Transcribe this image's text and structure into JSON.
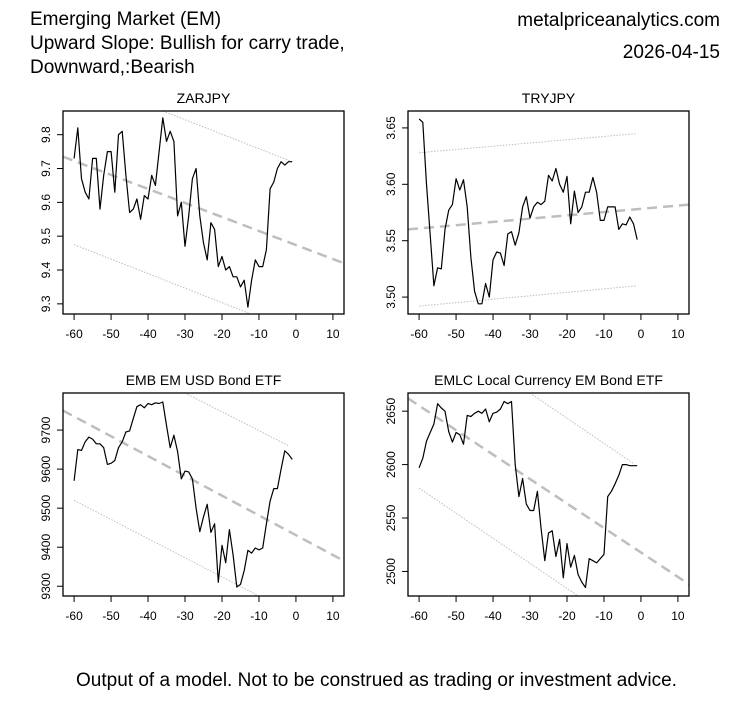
{
  "header": {
    "title_lines": [
      "Emerging Market (EM)",
      "Upward Slope: Bullish for carry trade,",
      "Downward,:Bearish"
    ],
    "site": "metalpriceanalytics.com",
    "date": "2026-04-15"
  },
  "footer": "Output of a model. Not to be construed as trading or investment advice.",
  "colors": {
    "series": "#000000",
    "trend": "#bebebe",
    "band": "#bebebe"
  },
  "chart_data": [
    {
      "type": "line",
      "title": "ZARJPY",
      "xlim": [
        -63,
        13
      ],
      "ylim": [
        9.27,
        9.87
      ],
      "xticks": [
        -60,
        -50,
        -40,
        -30,
        -20,
        -10,
        0,
        10
      ],
      "yticks": [
        9.3,
        9.4,
        9.5,
        9.6,
        9.7,
        9.8
      ],
      "ytick_labels": [
        "9.3",
        "9.4",
        "9.5",
        "9.6",
        "9.7",
        "9.8"
      ],
      "series": [
        {
          "name": "ZARJPY",
          "x": [
            -60,
            -59,
            -58,
            -57,
            -56,
            -55,
            -54,
            -53,
            -52,
            -51,
            -50,
            -49,
            -48,
            -47,
            -46,
            -45,
            -44,
            -43,
            -42,
            -41,
            -40,
            -39,
            -38,
            -37,
            -36,
            -35,
            -34,
            -33,
            -32,
            -31,
            -30,
            -29,
            -28,
            -27,
            -26,
            -25,
            -24,
            -23,
            -22,
            -21,
            -20,
            -19,
            -18,
            -17,
            -16,
            -15,
            -14,
            -13,
            -12,
            -11,
            -10,
            -9,
            -8,
            -7,
            -6,
            -5,
            -4,
            -3,
            -2,
            -1
          ],
          "y": [
            9.73,
            9.82,
            9.67,
            9.63,
            9.61,
            9.73,
            9.73,
            9.58,
            9.68,
            9.75,
            9.75,
            9.63,
            9.8,
            9.81,
            9.68,
            9.57,
            9.58,
            9.61,
            9.55,
            9.62,
            9.61,
            9.68,
            9.65,
            9.75,
            9.85,
            9.78,
            9.81,
            9.78,
            9.56,
            9.6,
            9.47,
            9.56,
            9.67,
            9.7,
            9.56,
            9.48,
            9.43,
            9.54,
            9.52,
            9.41,
            9.44,
            9.4,
            9.41,
            9.38,
            9.38,
            9.35,
            9.37,
            9.29,
            9.37,
            9.43,
            9.41,
            9.41,
            9.46,
            9.64,
            9.66,
            9.7,
            9.72,
            9.71,
            9.72,
            9.72
          ]
        }
      ],
      "trend": {
        "x": [
          -63,
          13
        ],
        "y": [
          9.735,
          9.42
        ]
      },
      "upper_band": {
        "x": [
          -36,
          -1
        ],
        "y": [
          9.87,
          9.72
        ]
      },
      "lower_band": {
        "x": [
          -60,
          -11
        ],
        "y": [
          9.475,
          9.265
        ]
      }
    },
    {
      "type": "line",
      "title": "TRYJPY",
      "xlim": [
        -63,
        13
      ],
      "ylim": [
        3.485,
        3.665
      ],
      "xticks": [
        -60,
        -50,
        -40,
        -30,
        -20,
        -10,
        0,
        10
      ],
      "yticks": [
        3.5,
        3.55,
        3.6,
        3.65
      ],
      "ytick_labels": [
        "3.50",
        "3.55",
        "3.60",
        "3.65"
      ],
      "series": [
        {
          "name": "TRYJPY",
          "x": [
            -60,
            -59,
            -58,
            -57,
            -56,
            -55,
            -54,
            -53,
            -52,
            -51,
            -50,
            -49,
            -48,
            -47,
            -46,
            -45,
            -44,
            -43,
            -42,
            -41,
            -40,
            -39,
            -38,
            -37,
            -36,
            -35,
            -34,
            -33,
            -32,
            -31,
            -30,
            -29,
            -28,
            -27,
            -26,
            -25,
            -24,
            -23,
            -22,
            -21,
            -20,
            -19,
            -18,
            -17,
            -16,
            -15,
            -14,
            -13,
            -12,
            -11,
            -10,
            -9,
            -8,
            -7,
            -6,
            -5,
            -4,
            -3,
            -2,
            -1
          ],
          "y": [
            3.658,
            3.655,
            3.6,
            3.555,
            3.51,
            3.526,
            3.525,
            3.56,
            3.577,
            3.582,
            3.605,
            3.595,
            3.604,
            3.58,
            3.535,
            3.505,
            3.494,
            3.494,
            3.512,
            3.5,
            3.533,
            3.54,
            3.539,
            3.528,
            3.556,
            3.558,
            3.546,
            3.557,
            3.58,
            3.589,
            3.57,
            3.58,
            3.584,
            3.582,
            3.585,
            3.608,
            3.603,
            3.614,
            3.6,
            3.593,
            3.607,
            3.565,
            3.594,
            3.575,
            3.58,
            3.593,
            3.593,
            3.606,
            3.593,
            3.568,
            3.568,
            3.58,
            3.58,
            3.58,
            3.56,
            3.565,
            3.564,
            3.571,
            3.565,
            3.551
          ]
        }
      ],
      "trend": {
        "x": [
          -63,
          13
        ],
        "y": [
          3.56,
          3.582
        ]
      },
      "upper_band": {
        "x": [
          -60,
          -1
        ],
        "y": [
          3.628,
          3.645
        ]
      },
      "lower_band": {
        "x": [
          -60,
          -1
        ],
        "y": [
          3.492,
          3.51
        ]
      }
    },
    {
      "type": "line",
      "title": "EMB EM USD Bond ETF",
      "xlim": [
        -63,
        13
      ],
      "ylim": [
        9275,
        9795
      ],
      "xticks": [
        -60,
        -50,
        -40,
        -30,
        -20,
        -10,
        0,
        10
      ],
      "yticks": [
        9300,
        9400,
        9500,
        9600,
        9700
      ],
      "ytick_labels": [
        "9300",
        "9400",
        "9500",
        "9600",
        "9700"
      ],
      "series": [
        {
          "name": "EMB",
          "x": [
            -60,
            -59,
            -58,
            -57,
            -56,
            -55,
            -54,
            -53,
            -52,
            -51,
            -50,
            -49,
            -48,
            -47,
            -46,
            -45,
            -44,
            -43,
            -42,
            -41,
            -40,
            -39,
            -38,
            -37,
            -36,
            -35,
            -34,
            -33,
            -32,
            -31,
            -30,
            -29,
            -28,
            -27,
            -26,
            -25,
            -24,
            -23,
            -22,
            -21,
            -20,
            -19,
            -18,
            -17,
            -16,
            -15,
            -14,
            -13,
            -12,
            -11,
            -10,
            -9,
            -8,
            -7,
            -6,
            -5,
            -4,
            -3,
            -2,
            -1
          ],
          "y": [
            9570,
            9650,
            9648,
            9670,
            9682,
            9677,
            9665,
            9665,
            9655,
            9612,
            9615,
            9622,
            9655,
            9670,
            9695,
            9698,
            9730,
            9760,
            9765,
            9757,
            9768,
            9765,
            9770,
            9768,
            9772,
            9712,
            9655,
            9687,
            9645,
            9575,
            9595,
            9593,
            9575,
            9500,
            9440,
            9478,
            9510,
            9438,
            9460,
            9310,
            9405,
            9360,
            9445,
            9380,
            9298,
            9305,
            9340,
            9392,
            9385,
            9398,
            9393,
            9398,
            9460,
            9518,
            9550,
            9550,
            9600,
            9647,
            9638,
            9625
          ]
        }
      ],
      "trend": {
        "x": [
          -63,
          12
        ],
        "y": [
          9750,
          9370
        ]
      },
      "upper_band": {
        "x": [
          -30,
          -2
        ],
        "y": [
          9795,
          9660
        ]
      },
      "lower_band": {
        "x": [
          -60,
          -10
        ],
        "y": [
          9520,
          9275
        ]
      }
    },
    {
      "type": "line",
      "title": "EMLC Local Currency EM Bond ETF",
      "xlim": [
        -63,
        13
      ],
      "ylim": [
        2477,
        2667
      ],
      "xticks": [
        -60,
        -50,
        -40,
        -30,
        -20,
        -10,
        0,
        10
      ],
      "yticks": [
        2500,
        2550,
        2600,
        2650
      ],
      "ytick_labels": [
        "2500",
        "2550",
        "2600",
        "2650"
      ],
      "series": [
        {
          "name": "EMLC",
          "x": [
            -60,
            -59,
            -58,
            -57,
            -56,
            -55,
            -54,
            -53,
            -52,
            -51,
            -50,
            -49,
            -48,
            -47,
            -46,
            -45,
            -44,
            -43,
            -42,
            -41,
            -40,
            -39,
            -38,
            -37,
            -36,
            -35,
            -34,
            -33,
            -32,
            -31,
            -30,
            -29,
            -28,
            -27,
            -26,
            -25,
            -24,
            -23,
            -22,
            -21,
            -20,
            -19,
            -18,
            -17,
            -16,
            -15,
            -14,
            -13,
            -12,
            -11,
            -10,
            -9,
            -8,
            -7,
            -6,
            -5,
            -4,
            -3,
            -2,
            -1
          ],
          "y": [
            2597,
            2606,
            2622,
            2630,
            2638,
            2657,
            2653,
            2650,
            2631,
            2621,
            2630,
            2628,
            2619,
            2646,
            2645,
            2648,
            2650,
            2648,
            2652,
            2640,
            2648,
            2649,
            2652,
            2659,
            2657,
            2659,
            2600,
            2570,
            2587,
            2563,
            2557,
            2557,
            2575,
            2540,
            2510,
            2536,
            2538,
            2514,
            2530,
            2494,
            2526,
            2504,
            2515,
            2497,
            2490,
            2485,
            2512,
            2510,
            2508,
            2512,
            2516,
            2570,
            2575,
            2582,
            2590,
            2600,
            2600,
            2599,
            2599,
            2599
          ]
        }
      ],
      "trend": {
        "x": [
          -63,
          13
        ],
        "y": [
          2662,
          2488
        ]
      },
      "upper_band": {
        "x": [
          -30,
          -2
        ],
        "y": [
          2667,
          2601
        ]
      },
      "lower_band": {
        "x": [
          -60,
          -17
        ],
        "y": [
          2578,
          2477
        ]
      }
    }
  ]
}
